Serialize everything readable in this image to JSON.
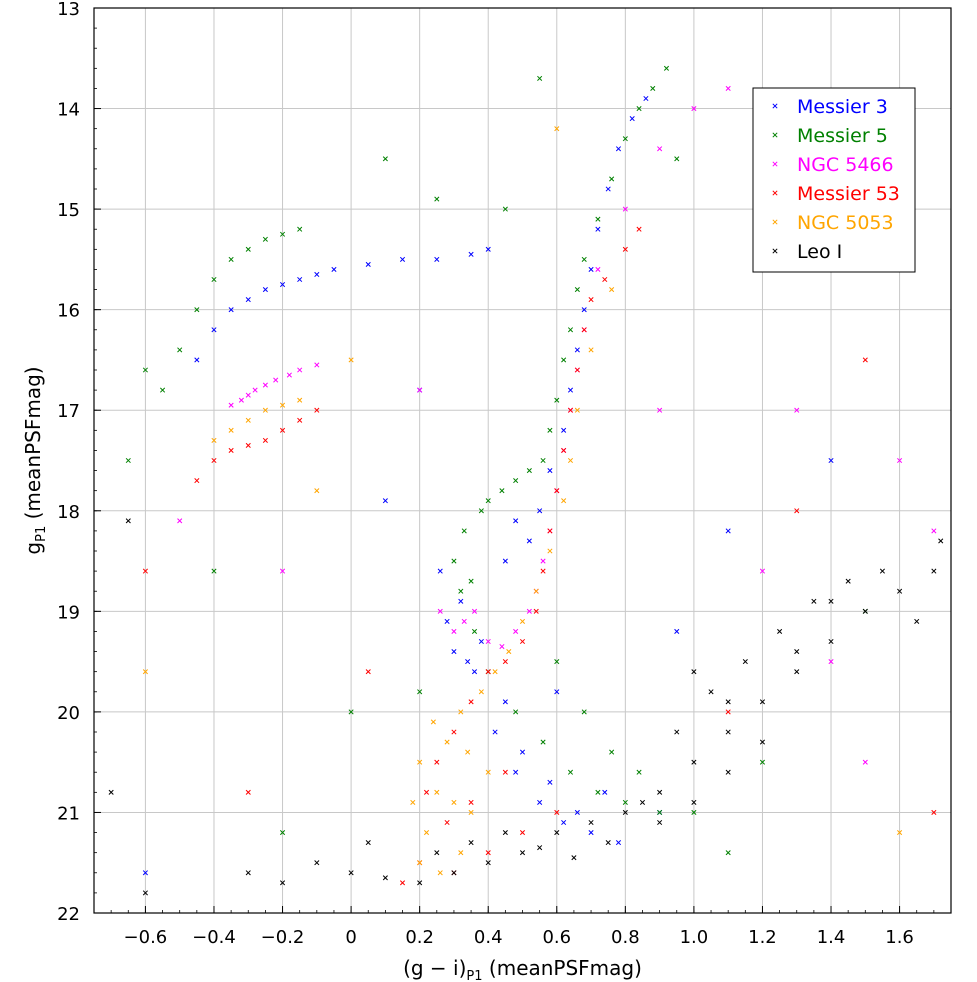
{
  "chart_data": {
    "type": "scatter",
    "title": "",
    "xlabel": {
      "main": "(g − i)",
      "sub": "P1",
      "suffix": " (meanPSFmag)"
    },
    "ylabel": {
      "main": "g",
      "sub": "P1",
      "suffix": " (meanPSFmag)"
    },
    "xlim": [
      -0.75,
      1.75
    ],
    "ylim": [
      13,
      22
    ],
    "y_inverted": true,
    "grid": true,
    "marker": "x",
    "legend_position": "top-right",
    "x_ticks": [
      -0.6,
      -0.4,
      -0.2,
      0,
      0.2,
      0.4,
      0.6,
      0.8,
      1.0,
      1.2,
      1.4,
      1.6
    ],
    "x_tick_labels": [
      "−0.6",
      "−0.4",
      "−0.2",
      "0",
      "0.2",
      "0.4",
      "0.6",
      "0.8",
      "1.0",
      "1.2",
      "1.4",
      "1.6"
    ],
    "y_ticks": [
      13,
      14,
      15,
      16,
      17,
      18,
      19,
      20,
      21,
      22
    ],
    "y_tick_labels": [
      "13",
      "14",
      "15",
      "16",
      "17",
      "18",
      "19",
      "20",
      "21",
      "22"
    ],
    "series": [
      {
        "name": "Messier 3",
        "color": "#0000ff",
        "points": [
          [
            0.3,
            19.4
          ],
          [
            0.34,
            19.5
          ],
          [
            0.28,
            19.1
          ],
          [
            0.32,
            18.9
          ],
          [
            0.38,
            19.3
          ],
          [
            0.42,
            20.2
          ],
          [
            0.48,
            20.6
          ],
          [
            0.55,
            20.9
          ],
          [
            0.62,
            21.1
          ],
          [
            0.7,
            21.2
          ],
          [
            0.78,
            21.3
          ],
          [
            0.5,
            20.4
          ],
          [
            0.45,
            19.9
          ],
          [
            0.58,
            20.7
          ],
          [
            0.66,
            21.0
          ],
          [
            0.52,
            18.3
          ],
          [
            0.55,
            18.0
          ],
          [
            0.58,
            17.6
          ],
          [
            0.62,
            17.2
          ],
          [
            0.64,
            16.8
          ],
          [
            0.66,
            16.4
          ],
          [
            0.68,
            16.0
          ],
          [
            0.7,
            15.6
          ],
          [
            0.72,
            15.2
          ],
          [
            0.75,
            14.8
          ],
          [
            0.78,
            14.4
          ],
          [
            0.82,
            14.1
          ],
          [
            0.86,
            13.9
          ],
          [
            0.45,
            18.5
          ],
          [
            0.48,
            18.1
          ],
          [
            -0.4,
            16.2
          ],
          [
            -0.35,
            16.0
          ],
          [
            -0.3,
            15.9
          ],
          [
            -0.25,
            15.8
          ],
          [
            -0.2,
            15.75
          ],
          [
            -0.15,
            15.7
          ],
          [
            -0.1,
            15.65
          ],
          [
            -0.05,
            15.6
          ],
          [
            0.05,
            15.55
          ],
          [
            0.15,
            15.5
          ],
          [
            0.25,
            15.5
          ],
          [
            0.35,
            15.45
          ],
          [
            -0.45,
            16.5
          ],
          [
            0.4,
            15.4
          ],
          [
            0.2,
            16.8
          ],
          [
            0.9,
            21.0
          ],
          [
            0.36,
            19.6
          ],
          [
            0.6,
            19.8
          ],
          [
            0.74,
            20.8
          ],
          [
            0.26,
            18.6
          ],
          [
            1.1,
            18.2
          ],
          [
            -0.6,
            21.6
          ],
          [
            1.4,
            17.5
          ],
          [
            0.1,
            17.9
          ],
          [
            0.95,
            19.2
          ]
        ]
      },
      {
        "name": "Messier 5",
        "color": "#008000",
        "points": [
          [
            0.3,
            18.5
          ],
          [
            0.35,
            18.7
          ],
          [
            0.33,
            18.2
          ],
          [
            0.38,
            18.0
          ],
          [
            0.4,
            17.9
          ],
          [
            0.44,
            17.8
          ],
          [
            0.48,
            17.7
          ],
          [
            0.52,
            17.6
          ],
          [
            0.56,
            17.5
          ],
          [
            0.58,
            17.2
          ],
          [
            0.6,
            16.9
          ],
          [
            0.62,
            16.5
          ],
          [
            0.64,
            16.2
          ],
          [
            0.66,
            15.8
          ],
          [
            0.68,
            15.5
          ],
          [
            0.72,
            15.1
          ],
          [
            0.76,
            14.7
          ],
          [
            0.8,
            14.3
          ],
          [
            0.84,
            14.0
          ],
          [
            0.88,
            13.8
          ],
          [
            0.92,
            13.6
          ],
          [
            0.4,
            19.6
          ],
          [
            0.48,
            20.0
          ],
          [
            0.56,
            20.3
          ],
          [
            0.64,
            20.6
          ],
          [
            0.72,
            20.8
          ],
          [
            0.8,
            20.9
          ],
          [
            0.9,
            21.0
          ],
          [
            1.0,
            21.0
          ],
          [
            0.6,
            19.5
          ],
          [
            0.68,
            20.0
          ],
          [
            0.76,
            20.4
          ],
          [
            0.84,
            20.6
          ],
          [
            0.36,
            19.2
          ],
          [
            0.32,
            18.8
          ],
          [
            -0.55,
            16.8
          ],
          [
            -0.5,
            16.4
          ],
          [
            -0.45,
            16.0
          ],
          [
            -0.4,
            15.7
          ],
          [
            -0.35,
            15.5
          ],
          [
            -0.3,
            15.4
          ],
          [
            -0.25,
            15.3
          ],
          [
            -0.2,
            15.25
          ],
          [
            -0.15,
            15.2
          ],
          [
            -0.6,
            16.6
          ],
          [
            -0.65,
            17.5
          ],
          [
            0.1,
            14.5
          ],
          [
            0.25,
            14.9
          ],
          [
            0.45,
            15.0
          ],
          [
            1.2,
            20.5
          ],
          [
            -0.2,
            21.2
          ],
          [
            0.0,
            20.0
          ],
          [
            1.5,
            19.0
          ],
          [
            0.55,
            13.7
          ],
          [
            0.95,
            14.5
          ],
          [
            0.2,
            19.8
          ],
          [
            1.1,
            21.4
          ],
          [
            -0.4,
            18.6
          ]
        ]
      },
      {
        "name": "NGC 5466",
        "color": "#ff00ff",
        "points": [
          [
            -0.35,
            16.95
          ],
          [
            -0.32,
            16.9
          ],
          [
            -0.3,
            16.85
          ],
          [
            -0.28,
            16.8
          ],
          [
            -0.25,
            16.75
          ],
          [
            -0.22,
            16.7
          ],
          [
            -0.18,
            16.65
          ],
          [
            -0.15,
            16.6
          ],
          [
            -0.1,
            16.55
          ],
          [
            0.3,
            19.2
          ],
          [
            0.33,
            19.1
          ],
          [
            0.36,
            19.0
          ],
          [
            0.4,
            19.3
          ],
          [
            0.44,
            19.35
          ],
          [
            0.48,
            19.2
          ],
          [
            0.52,
            19.0
          ],
          [
            0.54,
            18.8
          ],
          [
            0.56,
            18.5
          ],
          [
            0.58,
            18.2
          ],
          [
            0.6,
            17.8
          ],
          [
            0.62,
            17.4
          ],
          [
            0.64,
            17.0
          ],
          [
            0.66,
            16.6
          ],
          [
            0.68,
            16.2
          ],
          [
            0.72,
            15.6
          ],
          [
            0.8,
            15.0
          ],
          [
            0.9,
            14.4
          ],
          [
            1.0,
            14.0
          ],
          [
            1.1,
            13.8
          ],
          [
            0.26,
            19.0
          ],
          [
            1.3,
            17.0
          ],
          [
            1.5,
            20.5
          ],
          [
            1.6,
            17.5
          ],
          [
            0.2,
            16.8
          ],
          [
            -0.5,
            18.1
          ],
          [
            -0.2,
            18.6
          ],
          [
            1.2,
            18.6
          ],
          [
            0.9,
            17.0
          ],
          [
            1.4,
            19.5
          ],
          [
            1.7,
            18.2
          ]
        ]
      },
      {
        "name": "Messier 53",
        "color": "#ff0000",
        "points": [
          [
            -0.45,
            17.7
          ],
          [
            -0.4,
            17.5
          ],
          [
            -0.35,
            17.4
          ],
          [
            -0.3,
            17.35
          ],
          [
            -0.25,
            17.3
          ],
          [
            -0.2,
            17.2
          ],
          [
            -0.15,
            17.1
          ],
          [
            -0.1,
            17.0
          ],
          [
            0.25,
            20.5
          ],
          [
            0.3,
            20.2
          ],
          [
            0.35,
            19.9
          ],
          [
            0.4,
            19.6
          ],
          [
            0.45,
            19.5
          ],
          [
            0.5,
            19.3
          ],
          [
            0.54,
            19.0
          ],
          [
            0.56,
            18.6
          ],
          [
            0.58,
            18.2
          ],
          [
            0.6,
            17.8
          ],
          [
            0.62,
            17.4
          ],
          [
            0.64,
            17.0
          ],
          [
            0.66,
            16.6
          ],
          [
            0.68,
            16.2
          ],
          [
            0.7,
            15.9
          ],
          [
            0.74,
            15.7
          ],
          [
            0.8,
            15.4
          ],
          [
            0.84,
            15.2
          ],
          [
            0.2,
            21.5
          ],
          [
            0.3,
            21.6
          ],
          [
            0.4,
            21.4
          ],
          [
            0.5,
            21.2
          ],
          [
            0.6,
            21.0
          ],
          [
            0.15,
            21.7
          ],
          [
            0.35,
            20.9
          ],
          [
            0.45,
            20.6
          ],
          [
            0.28,
            21.1
          ],
          [
            0.22,
            20.8
          ],
          [
            -0.6,
            18.6
          ],
          [
            1.3,
            18.0
          ],
          [
            1.5,
            16.5
          ],
          [
            0.05,
            19.6
          ],
          [
            1.1,
            20.0
          ],
          [
            -0.3,
            20.8
          ],
          [
            1.7,
            21.0
          ]
        ]
      },
      {
        "name": "NGC 5053",
        "color": "#ffa500",
        "points": [
          [
            -0.4,
            17.3
          ],
          [
            -0.35,
            17.2
          ],
          [
            -0.3,
            17.1
          ],
          [
            -0.25,
            17.0
          ],
          [
            -0.2,
            16.95
          ],
          [
            -0.15,
            16.9
          ],
          [
            0.2,
            20.5
          ],
          [
            0.25,
            20.8
          ],
          [
            0.3,
            20.9
          ],
          [
            0.35,
            21.0
          ],
          [
            0.22,
            21.2
          ],
          [
            0.28,
            20.3
          ],
          [
            0.32,
            20.0
          ],
          [
            0.38,
            19.8
          ],
          [
            0.42,
            19.6
          ],
          [
            0.46,
            19.4
          ],
          [
            0.5,
            19.1
          ],
          [
            0.54,
            18.8
          ],
          [
            0.58,
            18.4
          ],
          [
            0.62,
            17.9
          ],
          [
            0.64,
            17.5
          ],
          [
            0.66,
            17.0
          ],
          [
            0.7,
            16.4
          ],
          [
            0.76,
            15.8
          ],
          [
            0.2,
            21.5
          ],
          [
            0.26,
            21.6
          ],
          [
            0.32,
            21.4
          ],
          [
            0.18,
            20.9
          ],
          [
            0.24,
            20.1
          ],
          [
            0.34,
            20.4
          ],
          [
            0.4,
            20.6
          ],
          [
            0.0,
            16.5
          ],
          [
            -0.1,
            17.8
          ],
          [
            1.2,
            15.5
          ],
          [
            0.6,
            14.2
          ],
          [
            -0.6,
            19.6
          ],
          [
            1.6,
            21.2
          ]
        ]
      },
      {
        "name": "Leo I",
        "color": "#000000",
        "points": [
          [
            0.6,
            21.2
          ],
          [
            0.7,
            21.1
          ],
          [
            0.8,
            21.0
          ],
          [
            0.9,
            20.8
          ],
          [
            1.0,
            20.5
          ],
          [
            1.1,
            20.2
          ],
          [
            1.2,
            19.9
          ],
          [
            1.3,
            19.6
          ],
          [
            1.4,
            19.3
          ],
          [
            1.5,
            19.0
          ],
          [
            1.6,
            18.8
          ],
          [
            1.7,
            18.6
          ],
          [
            0.95,
            20.2
          ],
          [
            1.05,
            19.8
          ],
          [
            1.15,
            19.5
          ],
          [
            1.25,
            19.2
          ],
          [
            1.35,
            18.9
          ],
          [
            1.45,
            18.7
          ],
          [
            0.4,
            21.5
          ],
          [
            0.5,
            21.4
          ],
          [
            0.3,
            21.6
          ],
          [
            0.2,
            21.7
          ],
          [
            0.1,
            21.65
          ],
          [
            0.0,
            21.6
          ],
          [
            -0.1,
            21.5
          ],
          [
            -0.2,
            21.7
          ],
          [
            -0.3,
            21.6
          ],
          [
            0.35,
            21.3
          ],
          [
            0.45,
            21.2
          ],
          [
            0.55,
            21.35
          ],
          [
            0.65,
            21.45
          ],
          [
            0.75,
            21.3
          ],
          [
            0.85,
            20.9
          ],
          [
            1.0,
            19.6
          ],
          [
            1.1,
            19.9
          ],
          [
            1.2,
            20.3
          ],
          [
            1.3,
            19.4
          ],
          [
            1.4,
            18.9
          ],
          [
            1.55,
            18.6
          ],
          [
            1.65,
            19.1
          ],
          [
            -0.6,
            21.8
          ],
          [
            -0.7,
            20.8
          ],
          [
            -0.65,
            18.1
          ],
          [
            1.72,
            18.3
          ],
          [
            0.9,
            21.1
          ],
          [
            1.0,
            20.9
          ],
          [
            1.1,
            20.6
          ],
          [
            0.25,
            21.4
          ],
          [
            0.05,
            21.3
          ]
        ]
      }
    ]
  }
}
